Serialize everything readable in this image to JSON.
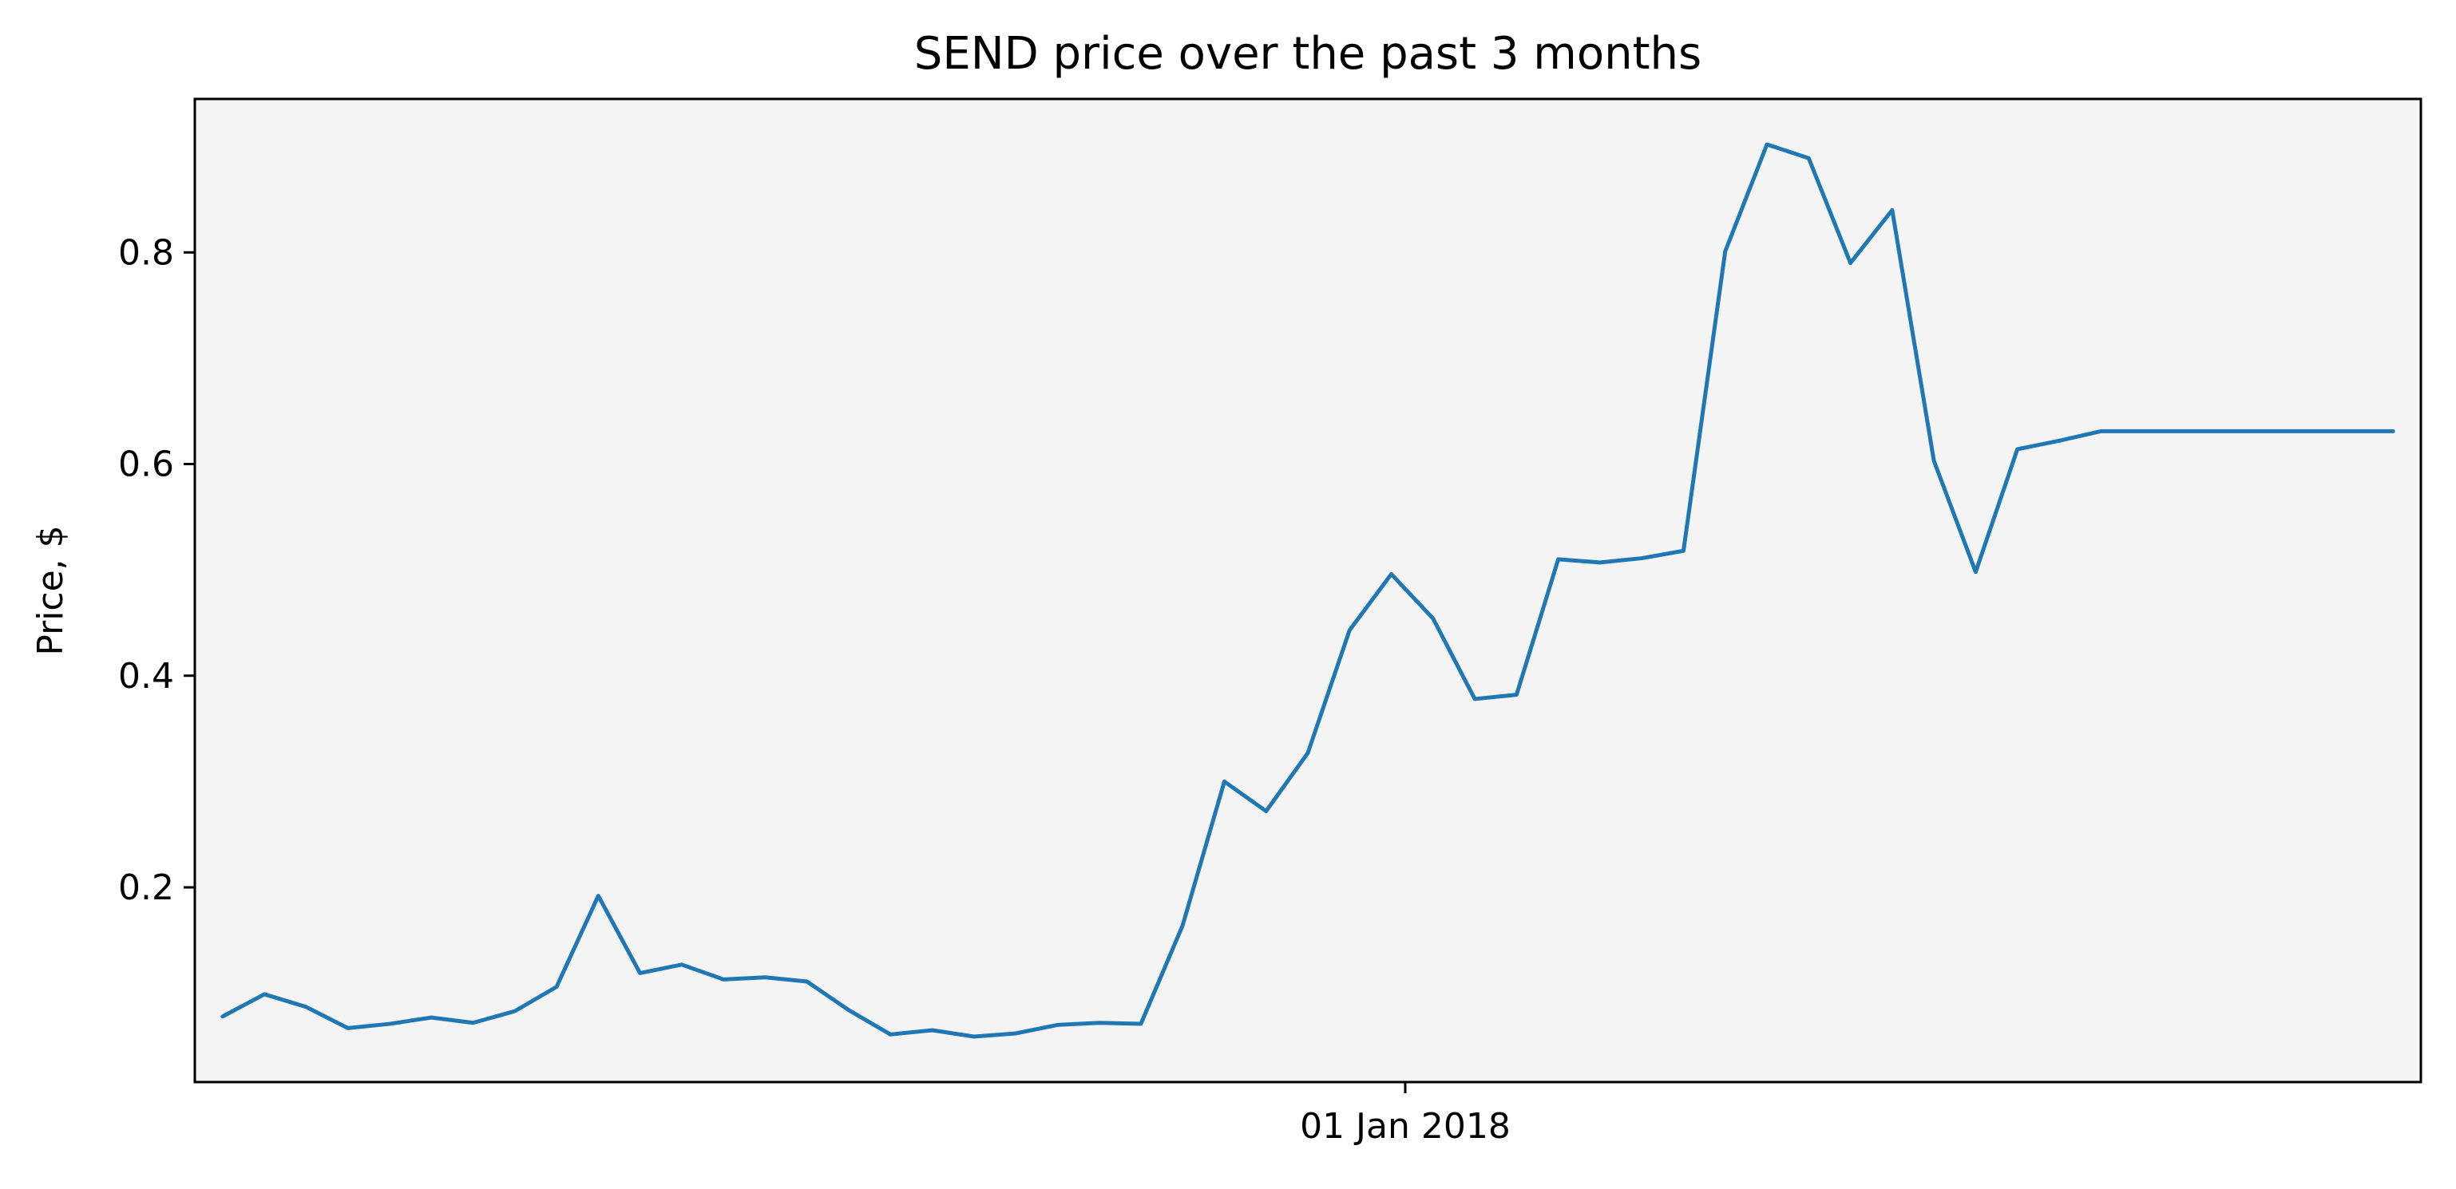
{
  "chart_data": {
    "type": "line",
    "title": "SEND price over the past 3 months",
    "xlabel": "",
    "ylabel": "Price, $",
    "x_tick_labels": [
      {
        "date": "2018-01-01",
        "label": "01 Jan 2018"
      }
    ],
    "y_ticks": [
      0.2,
      0.4,
      0.6,
      0.8
    ],
    "y_tick_labels": [
      "0.2",
      "0.4",
      "0.6",
      "0.8"
    ],
    "xlim": [
      "2017-10-06",
      "2018-03-15"
    ],
    "ylim": [
      0.016,
      0.945
    ],
    "grid": false,
    "legend": "none",
    "colors": {
      "plot_background": "#f4f4f4",
      "line": "#1f77b4",
      "axes": "#000000"
    },
    "series": [
      {
        "x": [
          "2017-10-08",
          "2017-10-11",
          "2017-10-14",
          "2017-10-17",
          "2017-10-20",
          "2017-10-23",
          "2017-10-26",
          "2017-10-29",
          "2017-11-01",
          "2017-11-04",
          "2017-11-07",
          "2017-11-10",
          "2017-11-13",
          "2017-11-16",
          "2017-11-19",
          "2017-11-22",
          "2017-11-25",
          "2017-11-28",
          "2017-12-01",
          "2017-12-04",
          "2017-12-07",
          "2017-12-10",
          "2017-12-13",
          "2017-12-16",
          "2017-12-19",
          "2017-12-22",
          "2017-12-25",
          "2017-12-28",
          "2017-12-31",
          "2018-01-03",
          "2018-01-06",
          "2018-01-09",
          "2018-01-12",
          "2018-01-15",
          "2018-01-18",
          "2018-01-21",
          "2018-01-24",
          "2018-01-27",
          "2018-01-30",
          "2018-02-02",
          "2018-02-05",
          "2018-02-08",
          "2018-02-11",
          "2018-02-14",
          "2018-02-17",
          "2018-02-20",
          "2018-02-23",
          "2018-02-26",
          "2018-03-01",
          "2018-03-04",
          "2018-03-07",
          "2018-03-10",
          "2018-03-13"
        ],
        "values": [
          0.078,
          0.099,
          0.087,
          0.067,
          0.071,
          0.077,
          0.072,
          0.083,
          0.106,
          0.192,
          0.119,
          0.127,
          0.113,
          0.115,
          0.111,
          0.084,
          0.061,
          0.065,
          0.059,
          0.062,
          0.07,
          0.072,
          0.071,
          0.164,
          0.3,
          0.272,
          0.327,
          0.443,
          0.496,
          0.454,
          0.378,
          0.382,
          0.51,
          0.507,
          0.511,
          0.518,
          0.801,
          0.902,
          0.889,
          0.79,
          0.84,
          0.603,
          0.498,
          0.614,
          0.622,
          0.631,
          0.631,
          0.631,
          0.631,
          0.631,
          0.631,
          0.631,
          0.631
        ]
      }
    ]
  }
}
